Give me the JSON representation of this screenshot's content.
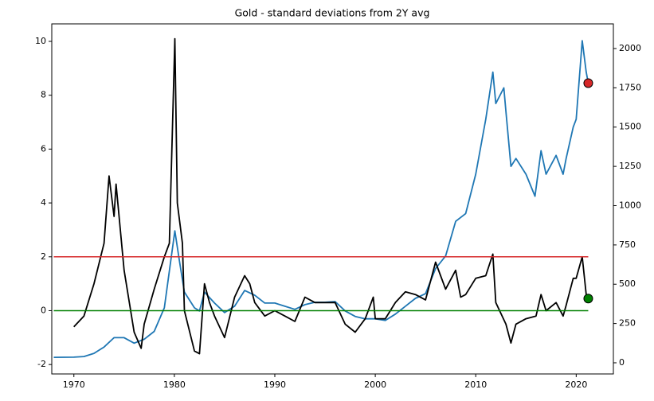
{
  "chart_data": {
    "type": "line",
    "title": "Gold - standard deviations from 2Y avg",
    "xlim": [
      1967.8,
      2023.7
    ],
    "xticks": [
      1970,
      1980,
      1990,
      2000,
      2010,
      2020
    ],
    "ylim": [
      -2.35,
      10.65
    ],
    "yticks": [
      -2,
      0,
      2,
      4,
      6,
      8,
      10
    ],
    "y2lim": [
      -71,
      2157
    ],
    "y2ticks": [
      0,
      250,
      500,
      750,
      1000,
      1250,
      1500,
      1750,
      2000
    ],
    "series": [
      {
        "color": "#1f77b4",
        "axis": "y2",
        "x": [
          1968,
          1970,
          1971,
          1972,
          1973,
          1974,
          1975,
          1976,
          1977,
          1978,
          1979,
          1980.05,
          1980.5,
          1981,
          1982,
          1982.5,
          1983,
          1984,
          1985,
          1986,
          1987,
          1988,
          1989,
          1990,
          1991,
          1992,
          1993,
          1994,
          1995,
          1996,
          1997,
          1998,
          1999,
          2000,
          2001,
          2002,
          2003,
          2004,
          2005,
          2006,
          2007,
          2008,
          2009,
          2010,
          2011,
          2011.7,
          2012,
          2012.8,
          2013,
          2013.5,
          2014,
          2015,
          2015.9,
          2016.5,
          2017,
          2018,
          2018.7,
          2019,
          2019.7,
          2020,
          2020.6,
          2021,
          2021.2
        ],
        "values": [
          35,
          36,
          40,
          60,
          100,
          160,
          160,
          125,
          150,
          200,
          350,
          840,
          650,
          450,
          350,
          330,
          450,
          380,
          320,
          360,
          460,
          430,
          380,
          380,
          360,
          340,
          370,
          385,
          385,
          390,
          330,
          295,
          280,
          280,
          270,
          310,
          360,
          410,
          440,
          600,
          680,
          900,
          950,
          1200,
          1550,
          1850,
          1650,
          1750,
          1600,
          1250,
          1300,
          1200,
          1060,
          1350,
          1200,
          1320,
          1200,
          1300,
          1500,
          1550,
          2050,
          1850,
          1780
        ]
      },
      {
        "color": "#000000",
        "axis": "y",
        "x": [
          1970,
          1971,
          1972,
          1973,
          1973.5,
          1974,
          1974.2,
          1975,
          1976,
          1976.7,
          1977,
          1978,
          1979,
          1979.5,
          1980.05,
          1980.3,
          1980.8,
          1981,
          1982,
          1982.5,
          1983,
          1983.5,
          1984,
          1985,
          1986,
          1987,
          1987.5,
          1988,
          1989,
          1990,
          1991,
          1992,
          1993,
          1994,
          1995,
          1996,
          1997,
          1998,
          1999,
          1999.8,
          2000,
          2001,
          2002,
          2003,
          2004,
          2005,
          2006,
          2006.5,
          2007,
          2008,
          2008.5,
          2009,
          2010,
          2011,
          2011.7,
          2012,
          2013,
          2013.5,
          2014,
          2015,
          2016,
          2016.5,
          2017,
          2018,
          2018.7,
          2019,
          2019.7,
          2020,
          2020.6,
          2021,
          2021.2
        ],
        "values": [
          -0.6,
          -0.2,
          1,
          2.5,
          5,
          3.5,
          4.7,
          1.5,
          -0.8,
          -1.4,
          -0.5,
          0.8,
          2,
          2.5,
          10.1,
          4,
          2.5,
          0,
          -1.5,
          -1.6,
          1,
          0.3,
          -0.2,
          -1,
          0.5,
          1.3,
          1,
          0.3,
          -0.2,
          0,
          -0.2,
          -0.4,
          0.5,
          0.3,
          0.3,
          0.3,
          -0.5,
          -0.8,
          -0.3,
          0.5,
          -0.3,
          -0.3,
          0.3,
          0.7,
          0.6,
          0.4,
          1.8,
          1.3,
          0.8,
          1.5,
          0.5,
          0.6,
          1.2,
          1.3,
          2.1,
          0.3,
          -0.5,
          -1.2,
          -0.5,
          -0.3,
          -0.2,
          0.6,
          0,
          0.3,
          -0.2,
          0.2,
          1.2,
          1.2,
          2.0,
          0.6,
          0.45
        ]
      }
    ],
    "hlines": [
      {
        "value": 2,
        "color": "#d62728",
        "x": [
          1968,
          2021.2
        ]
      },
      {
        "value": 0,
        "color": "#008000",
        "x": [
          1968,
          2021.2
        ]
      }
    ],
    "points": [
      {
        "x": 2021.2,
        "value": 1780,
        "axis": "y2",
        "color": "#d62728"
      },
      {
        "x": 2021.2,
        "value": 0.45,
        "axis": "y",
        "color": "#008000"
      }
    ]
  }
}
